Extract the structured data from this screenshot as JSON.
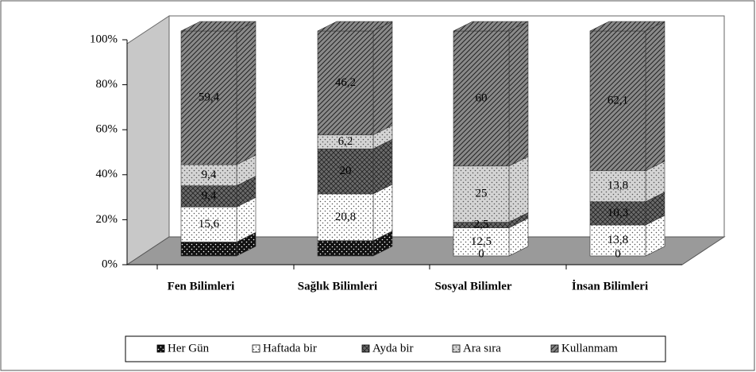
{
  "chart_data": {
    "type": "bar3d_stacked",
    "categories": [
      "Fen Bilimleri",
      "Sağlık Bilimleri",
      "Sosyal Bilimler",
      "İnsan Bilimleri"
    ],
    "series": [
      {
        "name": "Her Gün",
        "color": "#111111",
        "values": [
          6.2,
          6.8,
          0,
          0
        ],
        "value_labels": [
          null,
          null,
          "0",
          "0"
        ]
      },
      {
        "name": "Haftada bir",
        "color": "#ffffff",
        "values": [
          15.6,
          20.8,
          12.5,
          13.8
        ],
        "value_labels": [
          "15,6",
          "20,8",
          "12,5",
          "13,8"
        ]
      },
      {
        "name": "Ayda bir",
        "color": "#6a6a6a",
        "values": [
          9.4,
          20,
          2.5,
          10.3
        ],
        "value_labels": [
          "9,4",
          "20",
          "2,5",
          "10,3"
        ]
      },
      {
        "name": "Ara sıra",
        "color": "#d4d4d4",
        "values": [
          9.4,
          6.2,
          25,
          13.8
        ],
        "value_labels": [
          "9,4",
          "6,2",
          "25",
          "13,8"
        ]
      },
      {
        "name": "Kullanmam",
        "color": "#8a8a8a",
        "values": [
          59.4,
          46.2,
          60,
          62.1
        ],
        "value_labels": [
          "59,4",
          "46,2",
          "60",
          "62,1"
        ]
      }
    ],
    "ylim": [
      0,
      100
    ],
    "yticks": [
      {
        "value": 0,
        "label": "0%"
      },
      {
        "value": 20,
        "label": "20%"
      },
      {
        "value": 40,
        "label": "40%"
      },
      {
        "value": 60,
        "label": "60%"
      },
      {
        "value": 80,
        "label": "80%"
      },
      {
        "value": 100,
        "label": "100%"
      }
    ],
    "legend": "bottom"
  }
}
